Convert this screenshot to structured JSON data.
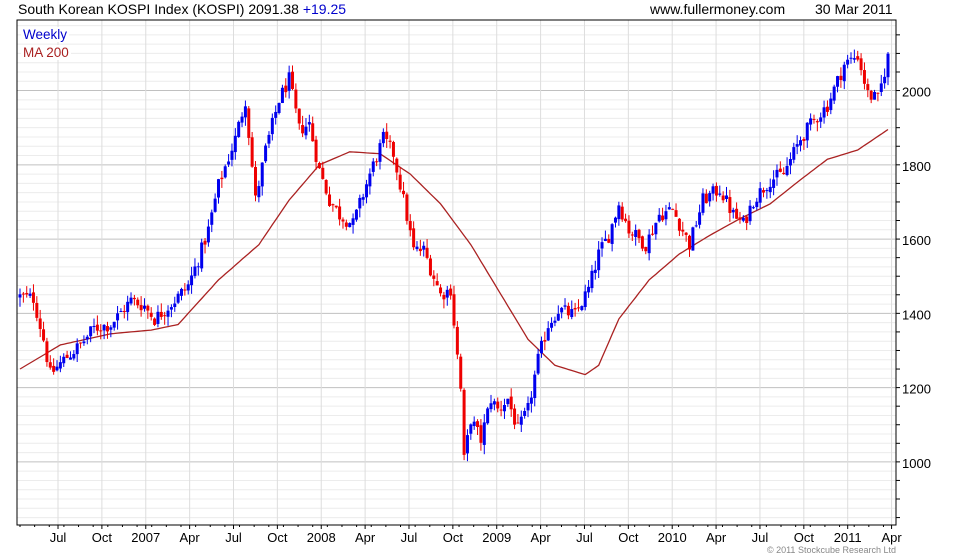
{
  "header": {
    "title": "South Korean KOSPI Index (KOSPI) 2091.38",
    "change": "+19.25",
    "site": "www.fullermoney.com",
    "date": "30 Mar 2011"
  },
  "legend": {
    "weekly": "Weekly",
    "ma": "MA 200"
  },
  "copyright": "© 2011 Stockcube Research Ltd",
  "colors": {
    "up": "#0000ee",
    "down": "#ee0000",
    "ma": "#aa2222",
    "grid": "#dddddd",
    "major_grid": "#c0c0c0"
  },
  "chart_data": {
    "type": "candlestick",
    "title": "South Korean KOSPI Index (KOSPI) 2091.38 +19.25",
    "frequency": "Weekly",
    "x_unit": "weeks since mid-Apr 2006",
    "x_range": [
      0,
      258
    ],
    "ylim": [
      830,
      2190
    ],
    "y_ticks": [
      1000,
      1200,
      1400,
      1600,
      1800,
      2000
    ],
    "x_tick_labels": [
      "Jul",
      "Oct",
      "2007",
      "Apr",
      "Jul",
      "Oct",
      "2008",
      "Apr",
      "Jul",
      "Oct",
      "2009",
      "Apr",
      "Jul",
      "Oct",
      "2010",
      "Apr",
      "Jul",
      "Oct",
      "2011",
      "Apr"
    ],
    "grid": true,
    "legend_position": "top-left",
    "close_anchors": [
      [
        0,
        1445
      ],
      [
        4,
        1440
      ],
      [
        7,
        1330
      ],
      [
        9,
        1235
      ],
      [
        13,
        1275
      ],
      [
        18,
        1315
      ],
      [
        22,
        1360
      ],
      [
        27,
        1370
      ],
      [
        33,
        1435
      ],
      [
        37,
        1420
      ],
      [
        40,
        1385
      ],
      [
        46,
        1435
      ],
      [
        50,
        1475
      ],
      [
        53,
        1545
      ],
      [
        56,
        1625
      ],
      [
        59,
        1745
      ],
      [
        64,
        1870
      ],
      [
        67,
        1975
      ],
      [
        70,
        1705
      ],
      [
        73,
        1840
      ],
      [
        77,
        1975
      ],
      [
        80,
        2030
      ],
      [
        83,
        1895
      ],
      [
        86,
        1910
      ],
      [
        89,
        1785
      ],
      [
        92,
        1705
      ],
      [
        95,
        1665
      ],
      [
        99,
        1640
      ],
      [
        104,
        1775
      ],
      [
        108,
        1870
      ],
      [
        111,
        1830
      ],
      [
        114,
        1705
      ],
      [
        117,
        1570
      ],
      [
        120,
        1570
      ],
      [
        125,
        1450
      ],
      [
        128,
        1465
      ],
      [
        131,
        1195
      ],
      [
        132,
        1005
      ],
      [
        134,
        1115
      ],
      [
        137,
        1060
      ],
      [
        140,
        1170
      ],
      [
        142,
        1140
      ],
      [
        145,
        1170
      ],
      [
        148,
        1085
      ],
      [
        151,
        1140
      ],
      [
        154,
        1275
      ],
      [
        157,
        1370
      ],
      [
        160,
        1410
      ],
      [
        165,
        1395
      ],
      [
        169,
        1465
      ],
      [
        172,
        1560
      ],
      [
        175,
        1610
      ],
      [
        178,
        1695
      ],
      [
        181,
        1625
      ],
      [
        186,
        1585
      ],
      [
        190,
        1665
      ],
      [
        194,
        1680
      ],
      [
        199,
        1585
      ],
      [
        203,
        1705
      ],
      [
        208,
        1735
      ],
      [
        212,
        1665
      ],
      [
        215,
        1640
      ],
      [
        218,
        1705
      ],
      [
        223,
        1760
      ],
      [
        227,
        1775
      ],
      [
        232,
        1870
      ],
      [
        236,
        1920
      ],
      [
        240,
        1960
      ],
      [
        245,
        2070
      ],
      [
        249,
        2095
      ],
      [
        252,
        1990
      ],
      [
        255,
        1975
      ],
      [
        258,
        2091
      ]
    ],
    "ma200_anchors": [
      [
        0,
        1250
      ],
      [
        12,
        1315
      ],
      [
        27,
        1345
      ],
      [
        39,
        1355
      ],
      [
        47,
        1370
      ],
      [
        59,
        1490
      ],
      [
        71,
        1585
      ],
      [
        80,
        1705
      ],
      [
        89,
        1800
      ],
      [
        98,
        1835
      ],
      [
        107,
        1830
      ],
      [
        116,
        1775
      ],
      [
        125,
        1695
      ],
      [
        134,
        1585
      ],
      [
        142,
        1465
      ],
      [
        151,
        1330
      ],
      [
        159,
        1260
      ],
      [
        168,
        1235
      ],
      [
        172,
        1260
      ],
      [
        178,
        1385
      ],
      [
        187,
        1490
      ],
      [
        196,
        1560
      ],
      [
        205,
        1610
      ],
      [
        214,
        1655
      ],
      [
        223,
        1695
      ],
      [
        232,
        1760
      ],
      [
        240,
        1815
      ],
      [
        249,
        1840
      ],
      [
        258,
        1895
      ]
    ]
  }
}
